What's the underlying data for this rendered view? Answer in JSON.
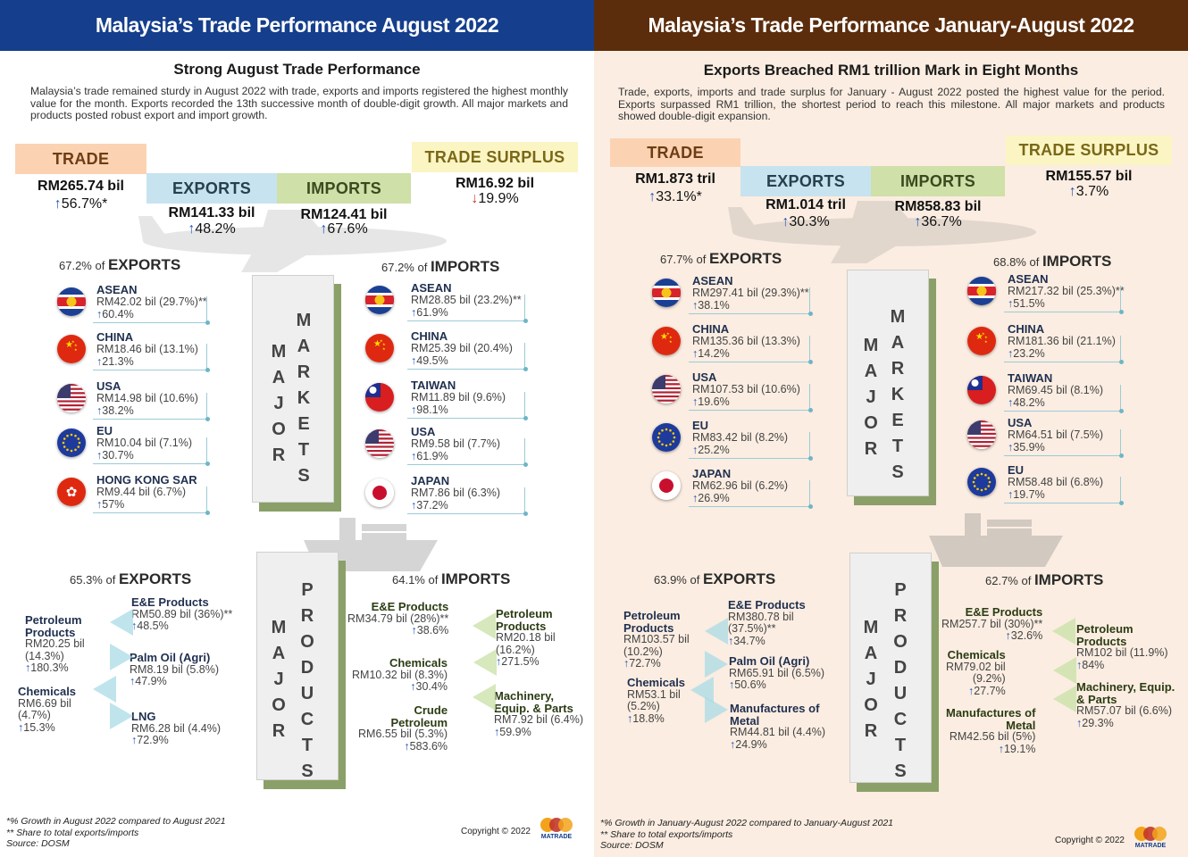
{
  "left": {
    "header": "Malaysia’s Trade Performance August 2022",
    "subtitle": "Strong August Trade Performance",
    "intro": "Malaysia’s trade remained sturdy in August 2022 with trade, exports and imports registered the highest monthly value for the month. Exports recorded the 13th successive month of double-digit growth. All major markets and products posted robust export and import growth.",
    "trade": {
      "label": "TRADE",
      "value": "RM265.74 bil",
      "arrow": "↑",
      "growth": "56.7%*"
    },
    "exports": {
      "label": "EXPORTS",
      "value": "RM141.33 bil",
      "arrow": "↑",
      "growth": "48.2%"
    },
    "imports": {
      "label": "IMPORTS",
      "value": "RM124.41 bil",
      "arrow": "↑",
      "growth": "67.6%"
    },
    "surplus": {
      "label": "TRADE SURPLUS",
      "value": "RM16.92 bil",
      "arrow": "↓",
      "growth": "19.9%"
    },
    "markets_exports_share": "67.2% of",
    "markets_exports_label": "EXPORTS",
    "markets_imports_share": "67.2% of",
    "markets_imports_label": "IMPORTS",
    "markets_col": [
      "M",
      "A",
      "J",
      "O",
      "R"
    ],
    "markets_col2": [
      "M",
      "A",
      "R",
      "K",
      "E",
      "T",
      "S"
    ],
    "export_markets": [
      {
        "flag": "asean-flag-icon",
        "name": "ASEAN",
        "value": "RM42.02 bil (29.7%)**",
        "growth": "60.4%"
      },
      {
        "flag": "china-flag-icon",
        "name": "CHINA",
        "value": "RM18.46 bil (13.1%)",
        "growth": "21.3%"
      },
      {
        "flag": "usa-flag-icon",
        "name": "USA",
        "value": "RM14.98 bil (10.6%)",
        "growth": "38.2%"
      },
      {
        "flag": "eu-flag-icon",
        "name": "EU",
        "value": "RM10.04 bil (7.1%)",
        "growth": "30.7%"
      },
      {
        "flag": "hongkong-flag-icon",
        "name": "HONG KONG SAR",
        "value": "RM9.44 bil (6.7%)",
        "growth": "57%"
      }
    ],
    "import_markets": [
      {
        "flag": "asean-flag-icon",
        "name": "ASEAN",
        "value": "RM28.85 bil (23.2%)**",
        "growth": "61.9%"
      },
      {
        "flag": "china-flag-icon",
        "name": "CHINA",
        "value": "RM25.39 bil (20.4%)",
        "growth": "49.5%"
      },
      {
        "flag": "taiwan-flag-icon",
        "name": "TAIWAN",
        "value": "RM11.89 bil (9.6%)",
        "growth": "98.1%"
      },
      {
        "flag": "usa-flag-icon",
        "name": "USA",
        "value": "RM9.58 bil (7.7%)",
        "growth": "61.9%"
      },
      {
        "flag": "japan-flag-icon",
        "name": "JAPAN",
        "value": "RM7.86 bil (6.3%)",
        "growth": "37.2%"
      }
    ],
    "products_exports_share": "65.3% of",
    "products_exports_label": "EXPORTS",
    "products_imports_share": "64.1% of",
    "products_imports_label": "IMPORTS",
    "products_col": [
      "M",
      "A",
      "J",
      "O",
      "R"
    ],
    "products_col2": [
      "P",
      "R",
      "O",
      "D",
      "U",
      "C",
      "T",
      "S"
    ],
    "export_products": [
      {
        "name": "E&E Products",
        "value": "RM50.89 bil (36%)**",
        "growth": "48.5%"
      },
      {
        "name": "Petroleum\nProducts",
        "value": "RM20.25 bil\n(14.3%)",
        "growth": "180.3%"
      },
      {
        "name": "Palm Oil (Agri)",
        "value": "RM8.19 bil (5.8%)",
        "growth": "47.9%"
      },
      {
        "name": "Chemicals",
        "value": "RM6.69 bil\n(4.7%)",
        "growth": "15.3%"
      },
      {
        "name": "LNG",
        "value": "RM6.28 bil (4.4%)",
        "growth": "72.9%"
      }
    ],
    "import_products": [
      {
        "name": "E&E Products",
        "value": "RM34.79 bil (28%)**",
        "growth": "38.6%"
      },
      {
        "name": "Petroleum\nProducts",
        "value": "RM20.18 bil\n(16.2%)",
        "growth": "271.5%"
      },
      {
        "name": "Chemicals",
        "value": "RM10.32 bil (8.3%)",
        "growth": "30.4%"
      },
      {
        "name": "Machinery,\nEquip. & Parts",
        "value": "RM7.92 bil (6.4%)",
        "growth": "59.9%"
      },
      {
        "name": "Crude\nPetroleum",
        "value": "RM6.55 bil (5.3%)",
        "growth": "583.6%"
      }
    ],
    "footnotes": [
      "*% Growth  in August 2022 compared to August 2021",
      "** Share to total exports/imports",
      "Source: DOSM"
    ],
    "copyright": "Copyright © 2022",
    "logo_text": "MATRADE"
  },
  "right": {
    "header": "Malaysia’s Trade Performance January-August 2022",
    "subtitle": "Exports Breached RM1 trillion Mark in Eight Months",
    "intro": "Trade, exports, imports and trade surplus for January - August 2022 posted the highest value for the period. Exports surpassed RM1 trillion, the shortest period to reach this milestone. All major markets and products showed double-digit expansion.",
    "trade": {
      "label": "TRADE",
      "value": "RM1.873 tril",
      "arrow": "↑",
      "growth": "33.1%*"
    },
    "exports": {
      "label": "EXPORTS",
      "value": "RM1.014 tril",
      "arrow": "↑",
      "growth": "30.3%"
    },
    "imports": {
      "label": "IMPORTS",
      "value": "RM858.83 bil",
      "arrow": "↑",
      "growth": "36.7%"
    },
    "surplus": {
      "label": "TRADE SURPLUS",
      "value": "RM155.57 bil",
      "arrow": "↑",
      "growth": "3.7%"
    },
    "markets_exports_share": "67.7% of",
    "markets_exports_label": "EXPORTS",
    "markets_imports_share": "68.8% of",
    "markets_imports_label": "IMPORTS",
    "export_markets": [
      {
        "flag": "asean-flag-icon",
        "name": "ASEAN",
        "value": "RM297.41 bil (29.3%)**",
        "growth": "38.1%"
      },
      {
        "flag": "china-flag-icon",
        "name": "CHINA",
        "value": "RM135.36 bil (13.3%)",
        "growth": "14.2%"
      },
      {
        "flag": "usa-flag-icon",
        "name": "USA",
        "value": "RM107.53 bil (10.6%)",
        "growth": "19.6%"
      },
      {
        "flag": "eu-flag-icon",
        "name": "EU",
        "value": "RM83.42 bil (8.2%)",
        "growth": "25.2%"
      },
      {
        "flag": "japan-flag-icon",
        "name": "JAPAN",
        "value": "RM62.96 bil (6.2%)",
        "growth": "26.9%"
      }
    ],
    "import_markets": [
      {
        "flag": "asean-flag-icon",
        "name": "ASEAN",
        "value": "RM217.32 bil (25.3%)**",
        "growth": "51.5%"
      },
      {
        "flag": "china-flag-icon",
        "name": "CHINA",
        "value": "RM181.36 bil (21.1%)",
        "growth": "23.2%"
      },
      {
        "flag": "taiwan-flag-icon",
        "name": "TAIWAN",
        "value": "RM69.45 bil (8.1%)",
        "growth": "48.2%"
      },
      {
        "flag": "usa-flag-icon",
        "name": "USA",
        "value": "RM64.51 bil (7.5%)",
        "growth": "35.9%"
      },
      {
        "flag": "eu-flag-icon",
        "name": "EU",
        "value": "RM58.48 bil (6.8%)",
        "growth": "19.7%"
      }
    ],
    "products_exports_share": "63.9% of",
    "products_exports_label": "EXPORTS",
    "products_imports_share": "62.7% of",
    "products_imports_label": "IMPORTS",
    "export_products": [
      {
        "name": "E&E Products",
        "value": "RM380.78 bil\n(37.5%)**",
        "growth": "34.7%"
      },
      {
        "name": "Petroleum\nProducts",
        "value": "RM103.57 bil\n(10.2%)",
        "growth": "72.7%"
      },
      {
        "name": "Palm Oil (Agri)",
        "value": "RM65.91 bil (6.5%)",
        "growth": "50.6%"
      },
      {
        "name": "Chemicals",
        "value": "RM53.1 bil\n(5.2%)",
        "growth": "18.8%"
      },
      {
        "name": "Manufactures of\nMetal",
        "value": "RM44.81 bil (4.4%)",
        "growth": "24.9%"
      }
    ],
    "import_products": [
      {
        "name": "E&E Products",
        "value": "RM257.7 bil (30%)**",
        "growth": "32.6%"
      },
      {
        "name": "Petroleum\nProducts",
        "value": "RM102 bil (11.9%)",
        "growth": "84%"
      },
      {
        "name": "Chemicals",
        "value": "RM79.02 bil\n(9.2%)",
        "growth": "27.7%"
      },
      {
        "name": "Machinery, Equip.\n& Parts",
        "value": "RM57.07 bil (6.6%)",
        "growth": "29.3%"
      },
      {
        "name": "Manufactures of\nMetal",
        "value": "RM42.56 bil (5%)",
        "growth": "19.1%"
      }
    ],
    "footnotes": [
      "*% Growth  in January-August 2022 compared to January-August 2021",
      "** Share to total exports/imports",
      "Source: DOSM"
    ],
    "copyright": "Copyright © 2022",
    "logo_text": "MATRADE"
  },
  "colors": {
    "left_header": "#153e8c",
    "right_header": "#5b2d0c",
    "right_bg": "#fbede1",
    "trade": "#fbd3b2",
    "exports": "#c7e3ef",
    "imports": "#cfe0a8",
    "surplus": "#fbf5c4",
    "arrow_up": "#2255b5",
    "arrow_down": "#c4391d"
  }
}
